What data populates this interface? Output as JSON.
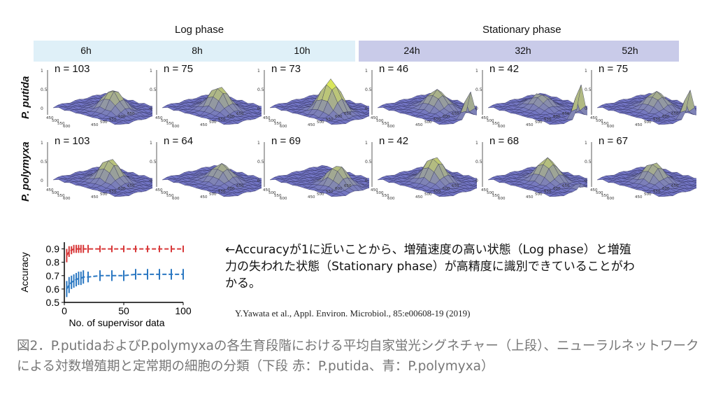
{
  "header": {
    "log_phase": "Log phase",
    "stationary_phase": "Stationary phase",
    "times": [
      "6h",
      "8h",
      "10h",
      "24h",
      "32h",
      "52h"
    ]
  },
  "species": [
    "P. putida",
    "P. polymyxa"
  ],
  "panels": [
    {
      "n": "n = 103"
    },
    {
      "n": "n = 75"
    },
    {
      "n": "n = 73"
    },
    {
      "n": "n = 46"
    },
    {
      "n": "n = 42"
    },
    {
      "n": "n = 75"
    },
    {
      "n": "n = 103"
    },
    {
      "n": "n = 64"
    },
    {
      "n": "n = 69"
    },
    {
      "n": "n = 42"
    },
    {
      "n": "n = 68"
    },
    {
      "n": "n = 67"
    }
  ],
  "surface_axis": {
    "z_ticks": [
      "1",
      "0.5",
      "0"
    ],
    "x_ticks": [
      "450",
      "500",
      "550",
      "600"
    ],
    "y_ticks": [
      "450",
      "500",
      "550",
      "600",
      "650"
    ]
  },
  "colors": {
    "band_log": "#dff0f8",
    "band_stationary": "#c9cbe9",
    "surface_low": "#6d6fc8",
    "surface_high": "#d9e65a",
    "red_series": "#d8393a",
    "blue_series": "#2b78c2",
    "caption": "#777777"
  },
  "chart_data": {
    "type": "line",
    "xlabel": "No. of supervisor data",
    "ylabel": "Accuracy",
    "xlim": [
      0,
      100
    ],
    "ylim": [
      0.5,
      0.95
    ],
    "xticks": [
      0,
      50,
      100
    ],
    "yticks": [
      0.5,
      0.6,
      0.7,
      0.8,
      0.9
    ],
    "series": [
      {
        "color": "#d8393a",
        "x": [
          2,
          4,
          6,
          8,
          10,
          12,
          14,
          16,
          20,
          30,
          40,
          50,
          60,
          70,
          80,
          90,
          100
        ],
        "y": [
          0.85,
          0.88,
          0.89,
          0.9,
          0.9,
          0.9,
          0.9,
          0.9,
          0.9,
          0.9,
          0.9,
          0.9,
          0.9,
          0.9,
          0.9,
          0.9,
          0.9
        ],
        "err": [
          0.05,
          0.04,
          0.03,
          0.03,
          0.03,
          0.03,
          0.03,
          0.03,
          0.03,
          0.025,
          0.025,
          0.025,
          0.025,
          0.025,
          0.025,
          0.025,
          0.025
        ]
      },
      {
        "color": "#2b78c2",
        "x": [
          2,
          4,
          6,
          8,
          10,
          12,
          14,
          16,
          20,
          30,
          40,
          50,
          60,
          70,
          80,
          90,
          100
        ],
        "y": [
          0.6,
          0.63,
          0.65,
          0.66,
          0.67,
          0.68,
          0.68,
          0.69,
          0.69,
          0.7,
          0.7,
          0.7,
          0.71,
          0.71,
          0.71,
          0.71,
          0.71
        ],
        "err": [
          0.06,
          0.06,
          0.05,
          0.05,
          0.05,
          0.05,
          0.05,
          0.05,
          0.04,
          0.04,
          0.04,
          0.04,
          0.04,
          0.04,
          0.04,
          0.04,
          0.04
        ]
      }
    ]
  },
  "note": "←Accuracyが1に近いことから、増殖速度の高い状態（Log phase）と増殖力の失われた状態（Stationary phase）が高精度に識別できていることがわかる。",
  "citation": "Y.Yawata et al., Appl. Environ. Microbiol., 85:e00608-19 (2019)",
  "caption": "図2．P.putidaおよびP.polymyxaの各生育段階における平均自家蛍光シグネチャー（上段）、ニューラルネットワークによる対数増殖期と定常期の細胞の分類（下段 赤：P.putida、青：P.polymyxa）"
}
